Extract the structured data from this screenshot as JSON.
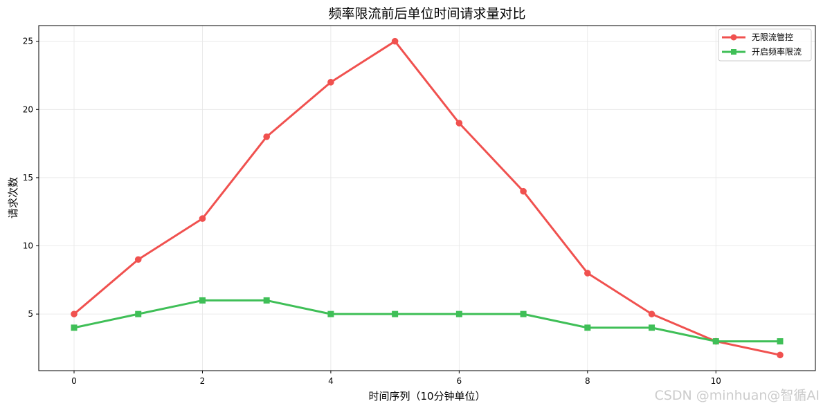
{
  "chart_data": {
    "type": "line",
    "title": "频率限流前后单位时间请求量对比",
    "xlabel": "时间序列（10分钟单位）",
    "ylabel": "请求次数",
    "x": [
      0,
      1,
      2,
      3,
      4,
      5,
      6,
      7,
      8,
      9,
      10,
      11
    ],
    "xticks": [
      0,
      2,
      4,
      6,
      8,
      10
    ],
    "yticks": [
      5,
      10,
      15,
      20,
      25
    ],
    "xlim": [
      -0.55,
      11.55
    ],
    "ylim": [
      0.85,
      26.15
    ],
    "grid": true,
    "legend_position": "top-right",
    "series": [
      {
        "name": "无限流管控",
        "values": [
          5,
          9,
          12,
          18,
          22,
          25,
          19,
          14,
          8,
          5,
          3,
          2
        ],
        "color": "#f0514f",
        "marker": "circle"
      },
      {
        "name": "开启频率限流",
        "values": [
          4,
          5,
          6,
          6,
          5,
          5,
          5,
          5,
          4,
          4,
          3,
          3
        ],
        "color": "#3fbf57",
        "marker": "square"
      }
    ]
  },
  "watermark": "CSDN @minhuan@智循AI"
}
